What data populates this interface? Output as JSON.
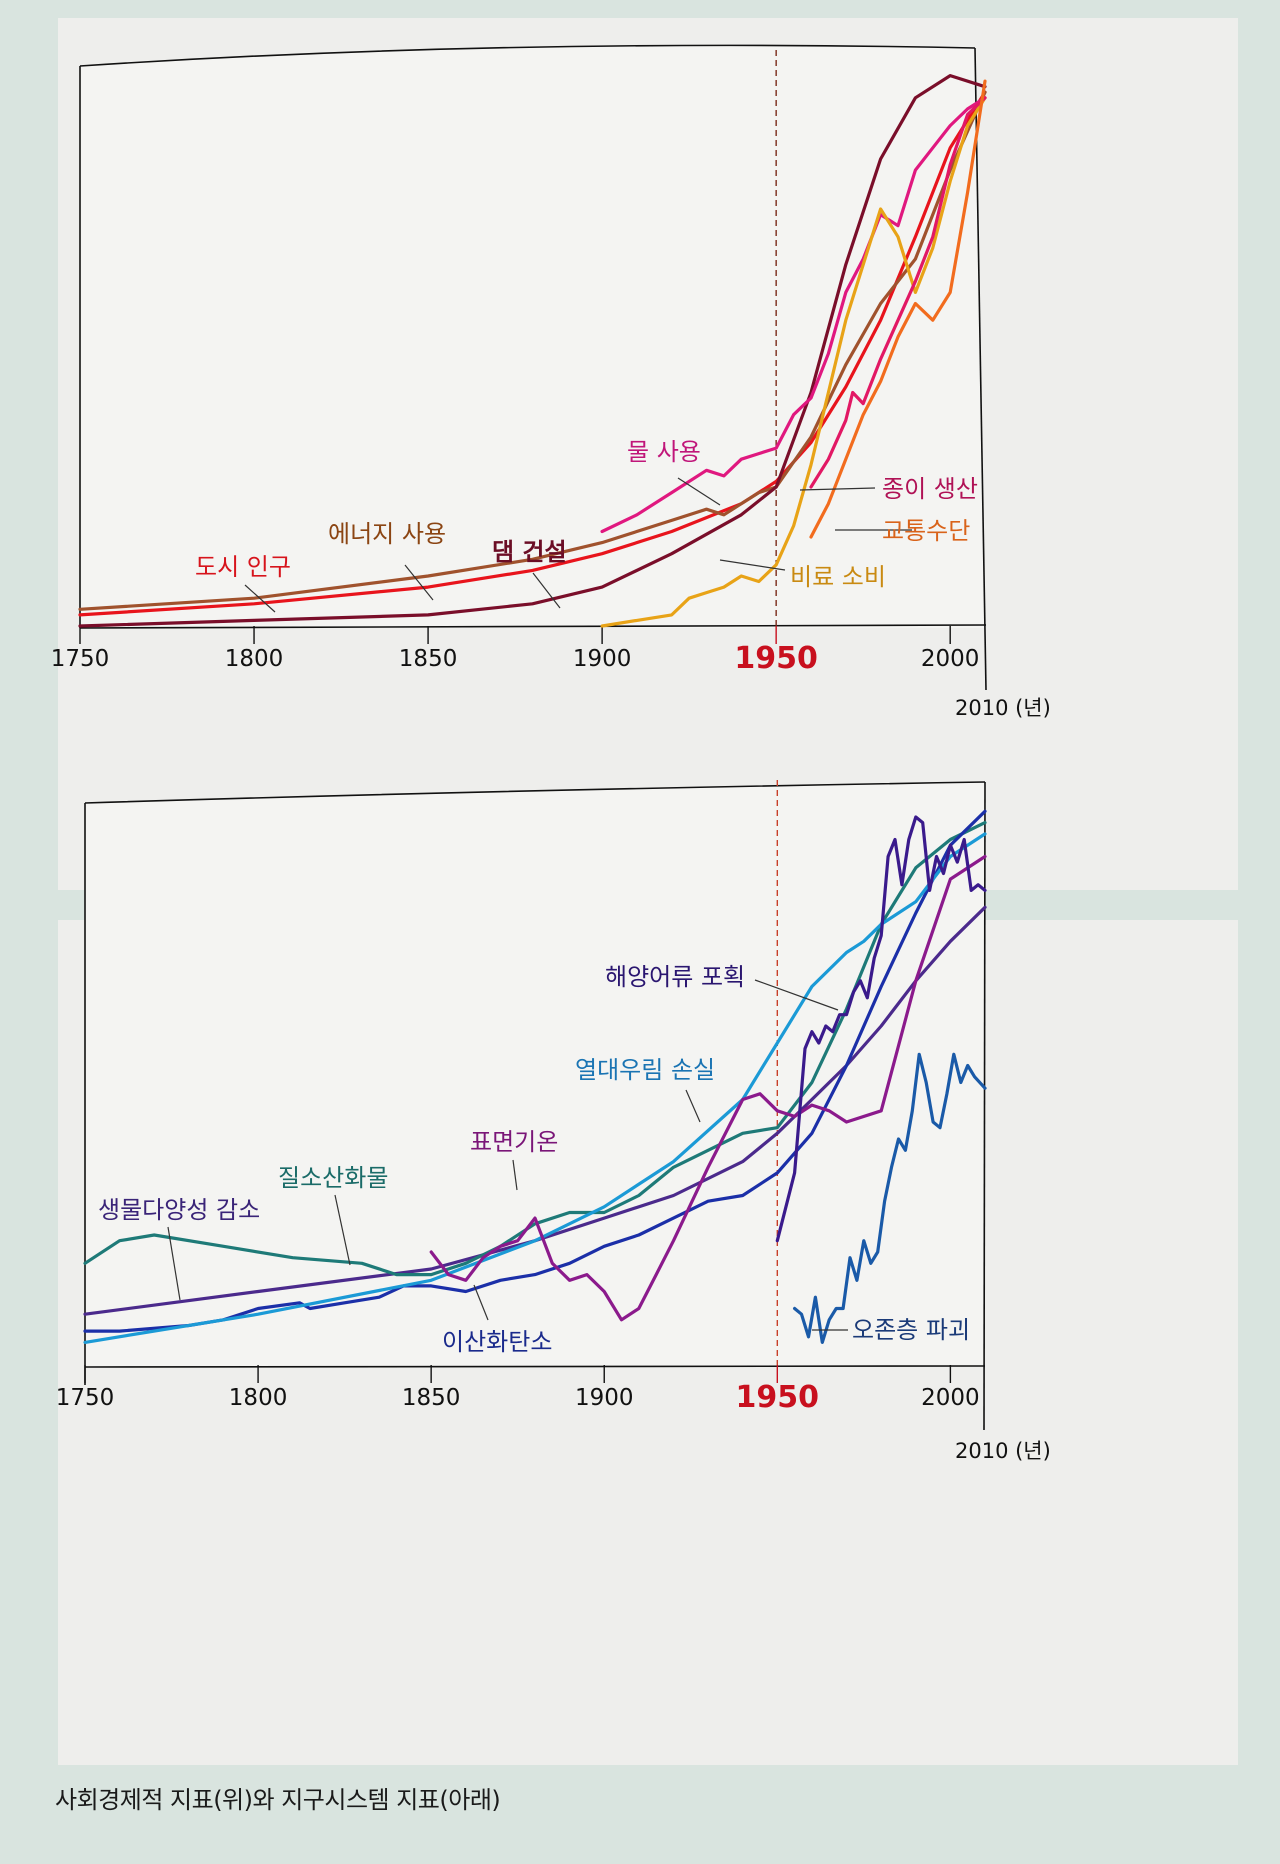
{
  "caption": "사회경제적 지표(위)와 지구시스템 지표(아래)",
  "chart_data": [
    {
      "type": "line",
      "title": "사회경제적 지표",
      "xlabel": "",
      "ylabel": "",
      "x_unit_label": "2010 (년)",
      "xlim": [
        1750,
        2010
      ],
      "ylim": [
        0,
        1
      ],
      "grid": false,
      "x_ticks": [
        1750,
        1800,
        1850,
        1900,
        1950,
        2000
      ],
      "x_tick_labels": [
        "1750",
        "1800",
        "1850",
        "1900",
        "1950",
        "2000"
      ],
      "highlight_x": 1950,
      "highlight_label": "1950",
      "highlight_color": "#c8101e",
      "series": [
        {
          "name": "도시 인구",
          "color": "#e8141c",
          "x": [
            1750,
            1800,
            1850,
            1880,
            1900,
            1920,
            1940,
            1950,
            1960,
            1970,
            1980,
            1990,
            2000,
            2010
          ],
          "y": [
            0.02,
            0.04,
            0.07,
            0.1,
            0.13,
            0.17,
            0.22,
            0.26,
            0.33,
            0.43,
            0.55,
            0.7,
            0.86,
            0.96
          ]
        },
        {
          "name": "에너지 사용",
          "color": "#a0522d",
          "x": [
            1750,
            1800,
            1850,
            1880,
            1900,
            1920,
            1930,
            1935,
            1940,
            1945,
            1950,
            1960,
            1970,
            1980,
            1990,
            2000,
            2010
          ],
          "y": [
            0.03,
            0.05,
            0.09,
            0.12,
            0.15,
            0.19,
            0.21,
            0.2,
            0.22,
            0.24,
            0.25,
            0.34,
            0.47,
            0.58,
            0.66,
            0.82,
            0.96
          ]
        },
        {
          "name": "댐 건설",
          "color": "#7a0e2a",
          "x": [
            1750,
            1800,
            1850,
            1880,
            1900,
            1920,
            1940,
            1950,
            1960,
            1970,
            1980,
            1990,
            2000,
            2010
          ],
          "y": [
            0.0,
            0.01,
            0.02,
            0.04,
            0.07,
            0.13,
            0.2,
            0.25,
            0.42,
            0.65,
            0.84,
            0.95,
            0.99,
            0.97
          ]
        },
        {
          "name": "물 사용",
          "color": "#e0187f",
          "x": [
            1900,
            1910,
            1920,
            1930,
            1935,
            1940,
            1945,
            1950,
            1955,
            1960,
            1965,
            1970,
            1975,
            1980,
            1985,
            1990,
            1995,
            2000,
            2005,
            2010
          ],
          "y": [
            0.17,
            0.2,
            0.24,
            0.28,
            0.27,
            0.3,
            0.31,
            0.32,
            0.38,
            0.41,
            0.49,
            0.6,
            0.66,
            0.74,
            0.72,
            0.82,
            0.86,
            0.9,
            0.93,
            0.95
          ]
        },
        {
          "name": "비료 소비",
          "color": "#e8a317",
          "x": [
            1900,
            1910,
            1920,
            1925,
            1930,
            1935,
            1940,
            1945,
            1950,
            1955,
            1960,
            1965,
            1970,
            1975,
            1980,
            1985,
            1990,
            1995,
            2000,
            2005,
            2010
          ],
          "y": [
            0.0,
            0.01,
            0.02,
            0.05,
            0.06,
            0.07,
            0.09,
            0.08,
            0.11,
            0.18,
            0.29,
            0.42,
            0.55,
            0.65,
            0.75,
            0.7,
            0.6,
            0.68,
            0.8,
            0.9,
            0.95
          ]
        },
        {
          "name": "종이 생산",
          "color": "#e21864",
          "x": [
            1960,
            1965,
            1970,
            1972,
            1975,
            1980,
            1985,
            1990,
            1995,
            2000,
            2005,
            2010
          ],
          "y": [
            0.25,
            0.3,
            0.37,
            0.42,
            0.4,
            0.48,
            0.55,
            0.62,
            0.7,
            0.83,
            0.92,
            0.95
          ]
        },
        {
          "name": "교통수단",
          "color": "#f26c1e",
          "x": [
            1960,
            1965,
            1970,
            1975,
            1980,
            1985,
            1990,
            1995,
            2000,
            2005,
            2010
          ],
          "y": [
            0.16,
            0.22,
            0.3,
            0.38,
            0.44,
            0.52,
            0.58,
            0.55,
            0.6,
            0.78,
            0.98
          ]
        }
      ],
      "annotations": [
        {
          "text": "물 사용",
          "color": "#c0167a"
        },
        {
          "text": "에너지 사용",
          "color": "#8b4513"
        },
        {
          "text": "도시 인구",
          "color": "#d7141c"
        },
        {
          "text": "댐 건설",
          "color": "#6b0d25"
        },
        {
          "text": "종이 생산",
          "color": "#b01256"
        },
        {
          "text": "교통수단",
          "color": "#d9631a"
        },
        {
          "text": "비료 소비",
          "color": "#c98a12"
        }
      ]
    },
    {
      "type": "line",
      "title": "지구시스템 지표",
      "xlabel": "",
      "ylabel": "",
      "x_unit_label": "2010 (년)",
      "xlim": [
        1750,
        2010
      ],
      "ylim": [
        0,
        1
      ],
      "grid": false,
      "x_ticks": [
        1750,
        1800,
        1850,
        1900,
        1950,
        2000
      ],
      "x_tick_labels": [
        "1750",
        "1800",
        "1850",
        "1900",
        "1950",
        "2000"
      ],
      "highlight_x": 1950,
      "highlight_label": "1950",
      "highlight_color": "#c8101e",
      "series": [
        {
          "name": "생물다양성 감소",
          "color": "#4b2a8c",
          "x": [
            1750,
            1800,
            1850,
            1880,
            1900,
            1920,
            1940,
            1950,
            1960,
            1970,
            1980,
            1990,
            2000,
            2010
          ],
          "y": [
            0.09,
            0.13,
            0.17,
            0.22,
            0.26,
            0.3,
            0.36,
            0.41,
            0.47,
            0.53,
            0.6,
            0.68,
            0.75,
            0.81
          ]
        },
        {
          "name": "질소산화물",
          "color": "#1e7a78",
          "x": [
            1750,
            1760,
            1770,
            1790,
            1810,
            1830,
            1840,
            1850,
            1860,
            1870,
            1880,
            1890,
            1900,
            1910,
            1920,
            1930,
            1940,
            1950,
            1960,
            1970,
            1980,
            1990,
            2000,
            2010
          ],
          "y": [
            0.18,
            0.22,
            0.23,
            0.21,
            0.19,
            0.18,
            0.16,
            0.16,
            0.18,
            0.21,
            0.25,
            0.27,
            0.27,
            0.3,
            0.35,
            0.38,
            0.41,
            0.42,
            0.5,
            0.63,
            0.78,
            0.88,
            0.93,
            0.96
          ]
        },
        {
          "name": "이산화탄소",
          "color": "#1b2fa8",
          "x": [
            1750,
            1760,
            1780,
            1790,
            1800,
            1812,
            1815,
            1825,
            1835,
            1842,
            1850,
            1860,
            1870,
            1880,
            1890,
            1900,
            1910,
            1920,
            1930,
            1940,
            1950,
            1960,
            1970,
            1980,
            1990,
            2000,
            2010
          ],
          "y": [
            0.06,
            0.06,
            0.07,
            0.08,
            0.1,
            0.11,
            0.1,
            0.11,
            0.12,
            0.14,
            0.14,
            0.13,
            0.15,
            0.16,
            0.18,
            0.21,
            0.23,
            0.26,
            0.29,
            0.3,
            0.34,
            0.41,
            0.53,
            0.67,
            0.8,
            0.92,
            0.98
          ]
        },
        {
          "name": "열대우림 손실",
          "color": "#1b9ad6",
          "x": [
            1750,
            1800,
            1850,
            1880,
            1900,
            1920,
            1940,
            1950,
            1960,
            1970,
            1975,
            1980,
            1990,
            2000,
            2010
          ],
          "y": [
            0.04,
            0.09,
            0.15,
            0.22,
            0.28,
            0.36,
            0.47,
            0.57,
            0.67,
            0.73,
            0.75,
            0.78,
            0.82,
            0.9,
            0.94
          ]
        },
        {
          "name": "표면기온",
          "color": "#8b1a8c",
          "x": [
            1850,
            1855,
            1860,
            1865,
            1870,
            1875,
            1880,
            1885,
            1890,
            1895,
            1900,
            1905,
            1910,
            1915,
            1920,
            1930,
            1940,
            1945,
            1950,
            1955,
            1960,
            1965,
            1970,
            1980,
            1990,
            2000,
            2010
          ],
          "y": [
            0.2,
            0.16,
            0.15,
            0.19,
            0.21,
            0.22,
            0.26,
            0.18,
            0.15,
            0.16,
            0.13,
            0.08,
            0.1,
            0.16,
            0.22,
            0.35,
            0.47,
            0.48,
            0.45,
            0.44,
            0.46,
            0.45,
            0.43,
            0.45,
            0.68,
            0.86,
            0.9
          ]
        },
        {
          "name": "해양어류 포획",
          "color": "#3a1a8c",
          "x": [
            1950,
            1955,
            1958,
            1960,
            1962,
            1964,
            1966,
            1968,
            1970,
            1972,
            1974,
            1976,
            1978,
            1980,
            1982,
            1984,
            1986,
            1988,
            1990,
            1992,
            1994,
            1996,
            1998,
            2000,
            2002,
            2004,
            2006,
            2008,
            2010
          ],
          "y": [
            0.22,
            0.34,
            0.56,
            0.59,
            0.57,
            0.6,
            0.59,
            0.62,
            0.62,
            0.66,
            0.68,
            0.65,
            0.72,
            0.76,
            0.9,
            0.93,
            0.85,
            0.93,
            0.97,
            0.96,
            0.84,
            0.9,
            0.87,
            0.92,
            0.89,
            0.93,
            0.84,
            0.85,
            0.84
          ]
        },
        {
          "name": "오존층 파괴",
          "color": "#1a5aa8",
          "x": [
            1955,
            1957,
            1959,
            1961,
            1963,
            1965,
            1967,
            1969,
            1971,
            1973,
            1975,
            1977,
            1979,
            1981,
            1983,
            1985,
            1987,
            1989,
            1991,
            1993,
            1995,
            1997,
            1999,
            2001,
            2003,
            2005,
            2007,
            2010
          ],
          "y": [
            0.1,
            0.09,
            0.05,
            0.12,
            0.04,
            0.08,
            0.1,
            0.1,
            0.19,
            0.15,
            0.22,
            0.18,
            0.2,
            0.29,
            0.35,
            0.4,
            0.38,
            0.45,
            0.55,
            0.5,
            0.43,
            0.42,
            0.48,
            0.55,
            0.5,
            0.53,
            0.51,
            0.49
          ]
        }
      ],
      "annotations": [
        {
          "text": "해양어류 포획",
          "color": "#2a1670"
        },
        {
          "text": "열대우림 손실",
          "color": "#1a74b3"
        },
        {
          "text": "표면기온",
          "color": "#7a1678"
        },
        {
          "text": "질소산화물",
          "color": "#1a6b68"
        },
        {
          "text": "생물다양성 감소",
          "color": "#3a2478"
        },
        {
          "text": "이산화탄소",
          "color": "#1a2a8c"
        },
        {
          "text": "오존층 파괴",
          "color": "#1a3a78"
        }
      ]
    }
  ]
}
